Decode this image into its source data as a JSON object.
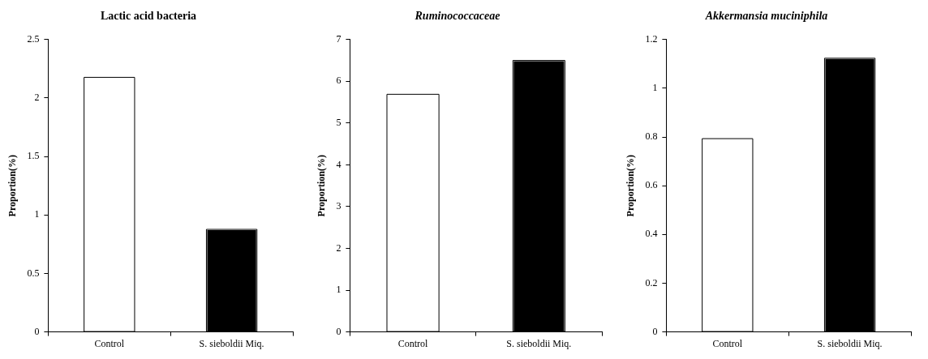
{
  "chart_data": [
    {
      "type": "bar",
      "title": "Lactic acid bacteria",
      "ylabel": "Proportion(%)",
      "categories": [
        "Control",
        "S. sieboldii Miq."
      ],
      "values": [
        2.17,
        0.87
      ],
      "colors": [
        "#ffffff",
        "#000000"
      ],
      "ylim": [
        0,
        2.5
      ],
      "yticks": [
        0,
        0.5,
        1,
        1.5,
        2,
        2.5
      ],
      "grid": false,
      "legend": false
    },
    {
      "type": "bar",
      "title": "Ruminococcaceae",
      "ylabel": "Proportion(%)",
      "categories": [
        "Control",
        "S. sieboldii Miq."
      ],
      "values": [
        5.67,
        6.48
      ],
      "colors": [
        "#ffffff",
        "#000000"
      ],
      "ylim": [
        0,
        7
      ],
      "yticks": [
        0,
        1,
        2,
        3,
        4,
        5,
        6,
        7
      ],
      "grid": false,
      "legend": false
    },
    {
      "type": "bar",
      "title": "Akkermansia muciniphila",
      "ylabel": "Proportion(%)",
      "categories": [
        "Control",
        "S. sieboldii Miq."
      ],
      "values": [
        0.79,
        1.12
      ],
      "colors": [
        "#ffffff",
        "#000000"
      ],
      "ylim": [
        0,
        1.2
      ],
      "yticks": [
        0,
        0.2,
        0.4,
        0.6,
        0.8,
        1,
        1.2
      ],
      "grid": false,
      "legend": false
    }
  ]
}
